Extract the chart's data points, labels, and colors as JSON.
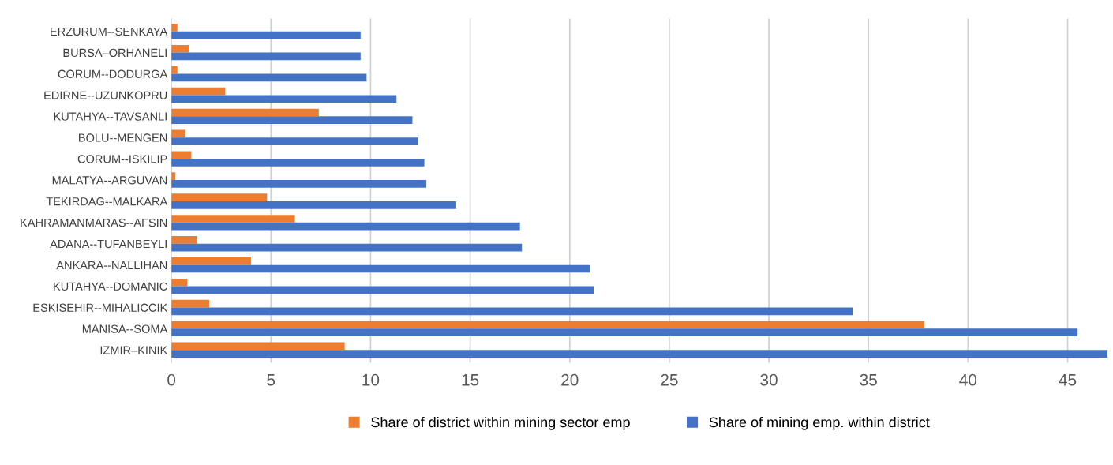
{
  "chart_data": {
    "type": "bar",
    "orientation": "horizontal",
    "categories": [
      "ERZURUM--SENKAYA",
      "BURSA–ORHANELI",
      "CORUM--DODURGA",
      "EDIRNE--UZUNKOPRU",
      "KUTAHYA--TAVSANLI",
      "BOLU--MENGEN",
      "CORUM--ISKILIP",
      "MALATYA--ARGUVAN",
      "TEKIRDAG--MALKARA",
      "KAHRAMANMARAS--AFSIN",
      "ADANA--TUFANBEYLI",
      "ANKARA--NALLIHAN",
      "KUTAHYA--DOMANIC",
      "ESKISEHIR--MIHALICCIK",
      "MANISA--SOMA",
      "IZMIR–KINIK"
    ],
    "series": [
      {
        "name": "Share of district within mining sector emp",
        "color": "#ed7d31",
        "values": [
          0.3,
          0.9,
          0.3,
          2.7,
          7.4,
          0.7,
          1.0,
          0.2,
          4.8,
          6.2,
          1.3,
          4.0,
          0.8,
          1.9,
          37.8,
          8.7
        ]
      },
      {
        "name": "Share of mining emp. within district",
        "color": "#4472c4",
        "values": [
          9.5,
          9.5,
          9.8,
          11.3,
          12.1,
          12.4,
          12.7,
          12.8,
          14.3,
          17.5,
          17.6,
          21.0,
          21.2,
          34.2,
          45.5,
          47.0
        ]
      }
    ],
    "xlim": [
      0,
      47
    ],
    "xticks": [
      0,
      5,
      10,
      15,
      20,
      25,
      30,
      35,
      40,
      45
    ],
    "grid": "x",
    "legend": "bottom"
  }
}
